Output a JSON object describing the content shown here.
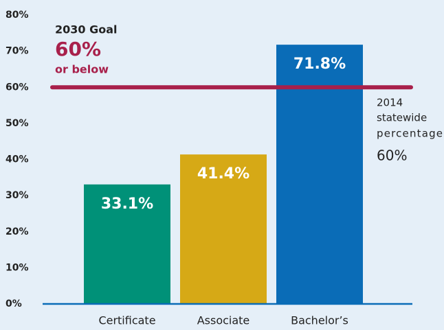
{
  "chart_data": {
    "type": "bar",
    "categories": [
      "Certificate",
      "Associate",
      "Bachelor’s"
    ],
    "values": [
      33.1,
      41.4,
      71.8
    ],
    "value_labels": [
      "33.1%",
      "41.4%",
      "71.8%"
    ],
    "colors": [
      "#009178",
      "#d6a916",
      "#0a6cb7"
    ],
    "ylim": [
      0,
      80
    ],
    "yticks": [
      {
        "value": 0,
        "label": "0%"
      },
      {
        "value": 10,
        "label": "10%"
      },
      {
        "value": 20,
        "label": "20%"
      },
      {
        "value": 30,
        "label": "30%"
      },
      {
        "value": 40,
        "label": "40%"
      },
      {
        "value": 50,
        "label": "50%"
      },
      {
        "value": 60,
        "label": "60%"
      },
      {
        "value": 70,
        "label": "70%"
      },
      {
        "value": 80,
        "label": "80%"
      }
    ],
    "reference_line": {
      "value": 60,
      "color": "#a8204b"
    },
    "goal_annotation": [
      "2030 Goal",
      "60%",
      "or below"
    ],
    "statewide_annotation": [
      "2014",
      "statewide",
      "percentage",
      "60%"
    ]
  }
}
